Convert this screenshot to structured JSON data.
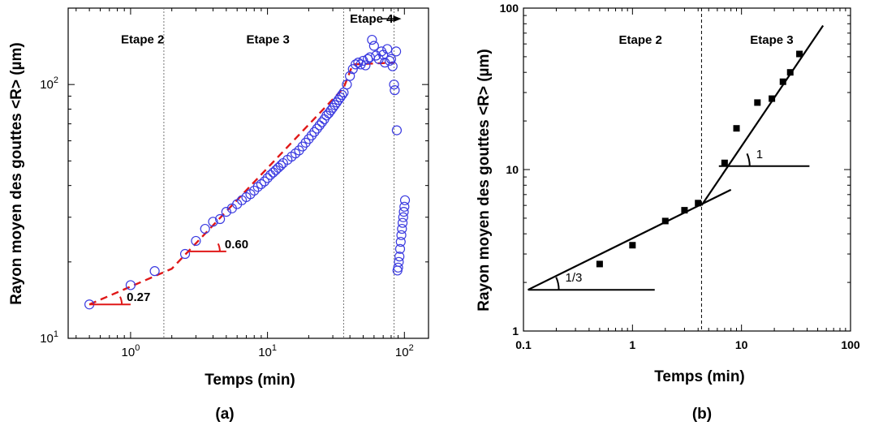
{
  "figure": {
    "panel_a_label": "(a)",
    "panel_b_label": "(b)"
  },
  "chart_data": [
    {
      "id": "a",
      "type": "scatter",
      "xscale": "log",
      "yscale": "log",
      "xlim": [
        0.35,
        150
      ],
      "ylim": [
        10,
        200
      ],
      "xlabel": "Temps (min)",
      "ylabel": "Rayon moyen des gouttes <R> (µm)",
      "x_ticks": [
        {
          "value": 1,
          "label": "10",
          "sup": "0"
        },
        {
          "value": 10,
          "label": "10",
          "sup": "1"
        },
        {
          "value": 100,
          "label": "10",
          "sup": "2"
        }
      ],
      "y_ticks": [
        {
          "value": 10,
          "label": "10",
          "sup": "1"
        },
        {
          "value": 100,
          "label": "10",
          "sup": "2"
        }
      ],
      "stage_boundaries": [
        1.75,
        36,
        84
      ],
      "stage_labels": [
        {
          "text": "Etape 2",
          "x": 0.85,
          "y": 145
        },
        {
          "text": "Etape 3",
          "x": 7,
          "y": 145
        },
        {
          "text": "Etape 4",
          "x": 40,
          "y": 175
        }
      ],
      "series": [
        {
          "marker": "open-circle",
          "color": "#3a3ae0",
          "points": [
            [
              0.5,
              13.6
            ],
            [
              1.0,
              16.2
            ],
            [
              1.5,
              18.4
            ],
            [
              2.5,
              21.5
            ],
            [
              3.0,
              24.2
            ],
            [
              3.5,
              27.0
            ],
            [
              4.0,
              28.8
            ],
            [
              4.5,
              29.5
            ],
            [
              5.0,
              31.5
            ],
            [
              5.5,
              32.5
            ],
            [
              6.0,
              33.8
            ],
            [
              6.5,
              35.0
            ],
            [
              7.0,
              36.0
            ],
            [
              7.5,
              37.0
            ],
            [
              8.0,
              38.2
            ],
            [
              8.5,
              39.5
            ],
            [
              9.0,
              40.5
            ],
            [
              9.5,
              41.5
            ],
            [
              10.0,
              42.8
            ],
            [
              10.5,
              44.0
            ],
            [
              11.0,
              45.0
            ],
            [
              11.5,
              46.0
            ],
            [
              12.0,
              47.0
            ],
            [
              12.5,
              48.0
            ],
            [
              13.0,
              49.0
            ],
            [
              14.0,
              50.5
            ],
            [
              15.0,
              52.0
            ],
            [
              16.0,
              53.5
            ],
            [
              17.0,
              55.0
            ],
            [
              18.0,
              57.0
            ],
            [
              19.0,
              59.0
            ],
            [
              20.0,
              61.0
            ],
            [
              21.0,
              63.0
            ],
            [
              22.0,
              65.0
            ],
            [
              23.0,
              67.0
            ],
            [
              24.0,
              69.0
            ],
            [
              25.0,
              71.0
            ],
            [
              26.0,
              73.0
            ],
            [
              27.0,
              75.5
            ],
            [
              28.0,
              77.0
            ],
            [
              29.0,
              79.0
            ],
            [
              30.0,
              81.0
            ],
            [
              31.0,
              83.0
            ],
            [
              32.0,
              85.0
            ],
            [
              33.0,
              87.0
            ],
            [
              34.0,
              89.0
            ],
            [
              35.0,
              91.0
            ],
            [
              36.0,
              93.0
            ],
            [
              38.0,
              100.0
            ],
            [
              40.0,
              108.0
            ],
            [
              42.0,
              115.0
            ],
            [
              44.0,
              120.0
            ],
            [
              46.0,
              122.0
            ],
            [
              48.0,
              120.0
            ],
            [
              50.0,
              124.0
            ],
            [
              52.0,
              119.0
            ],
            [
              54.0,
              126.0
            ],
            [
              56.0,
              128.0
            ],
            [
              58.0,
              150.0
            ],
            [
              60.0,
              142.0
            ],
            [
              62.0,
              130.0
            ],
            [
              65.0,
              126.0
            ],
            [
              68.0,
              135.0
            ],
            [
              70.0,
              131.0
            ],
            [
              72.0,
              122.0
            ],
            [
              75.0,
              138.0
            ],
            [
              78.0,
              124.0
            ],
            [
              80.0,
              126.0
            ],
            [
              82.0,
              118.0
            ],
            [
              84.0,
              100.0
            ],
            [
              85.0,
              95.0
            ],
            [
              87.0,
              135.0
            ],
            [
              88.0,
              66.0
            ],
            [
              89.0,
              18.5
            ],
            [
              90.0,
              19.0
            ],
            [
              91.0,
              20.0
            ],
            [
              92.0,
              21.0
            ],
            [
              93.0,
              22.5
            ],
            [
              94.0,
              24.0
            ],
            [
              95.0,
              25.5
            ],
            [
              96.0,
              27.0
            ],
            [
              97.0,
              28.5
            ],
            [
              98.0,
              30.0
            ],
            [
              99.0,
              31.5
            ],
            [
              100.0,
              33.0
            ],
            [
              101.0,
              35.0
            ]
          ]
        }
      ],
      "fits": [
        {
          "style": "dashed",
          "color": "#e01818",
          "points": [
            [
              0.5,
              13.6
            ],
            [
              2.0,
              18.8
            ],
            [
              36.0,
              97.0
            ],
            [
              42.0,
              120.0
            ],
            [
              85.0,
              122.0
            ]
          ]
        }
      ],
      "slope_annotations": [
        {
          "label": "0.27",
          "x0": 0.5,
          "x1": 1.0,
          "y": 13.6
        },
        {
          "label": "0.60",
          "x0": 2.6,
          "x1": 5.0,
          "y": 22.0
        }
      ]
    },
    {
      "id": "b",
      "type": "scatter",
      "xscale": "log",
      "yscale": "log",
      "xlim": [
        0.1,
        100
      ],
      "ylim": [
        1,
        100
      ],
      "xlabel": "Temps (min)",
      "ylabel": "Rayon moyen des gouttes <R> (µm)",
      "x_ticks": [
        {
          "value": 0.1,
          "label": "0.1"
        },
        {
          "value": 1,
          "label": "1"
        },
        {
          "value": 10,
          "label": "10"
        },
        {
          "value": 100,
          "label": "100"
        }
      ],
      "y_ticks": [
        {
          "value": 1,
          "label": "1"
        },
        {
          "value": 10,
          "label": "10"
        },
        {
          "value": 100,
          "label": "100"
        }
      ],
      "stage_boundaries": [
        4.3
      ],
      "stage_labels": [
        {
          "text": "Etape 2",
          "x": 0.75,
          "y": 60
        },
        {
          "text": "Etape 3",
          "x": 12,
          "y": 60
        }
      ],
      "series": [
        {
          "marker": "filled-square",
          "color": "#000000",
          "points": [
            [
              0.5,
              2.6
            ],
            [
              1.0,
              3.4
            ],
            [
              2.0,
              4.8
            ],
            [
              3.0,
              5.6
            ],
            [
              4.0,
              6.2
            ],
            [
              7.0,
              11.0
            ],
            [
              9.0,
              18.0
            ],
            [
              14.0,
              26.0
            ],
            [
              19.0,
              27.5
            ],
            [
              24.0,
              35.0
            ],
            [
              28.0,
              40.0
            ],
            [
              34.0,
              52.0
            ]
          ]
        }
      ],
      "fits": [
        {
          "style": "solid",
          "color": "#000000",
          "points": [
            [
              0.11,
              1.8
            ],
            [
              8.0,
              7.5
            ]
          ]
        },
        {
          "style": "solid",
          "color": "#000000",
          "points": [
            [
              4.3,
              6.0
            ],
            [
              56.0,
              78.0
            ]
          ]
        }
      ],
      "slope_annotations": [
        {
          "label": "1/3",
          "x0": 0.11,
          "x1": 1.6,
          "y": 1.8
        },
        {
          "label": "1",
          "x0": 6.2,
          "x1": 42.0,
          "y": 10.5
        }
      ]
    }
  ]
}
